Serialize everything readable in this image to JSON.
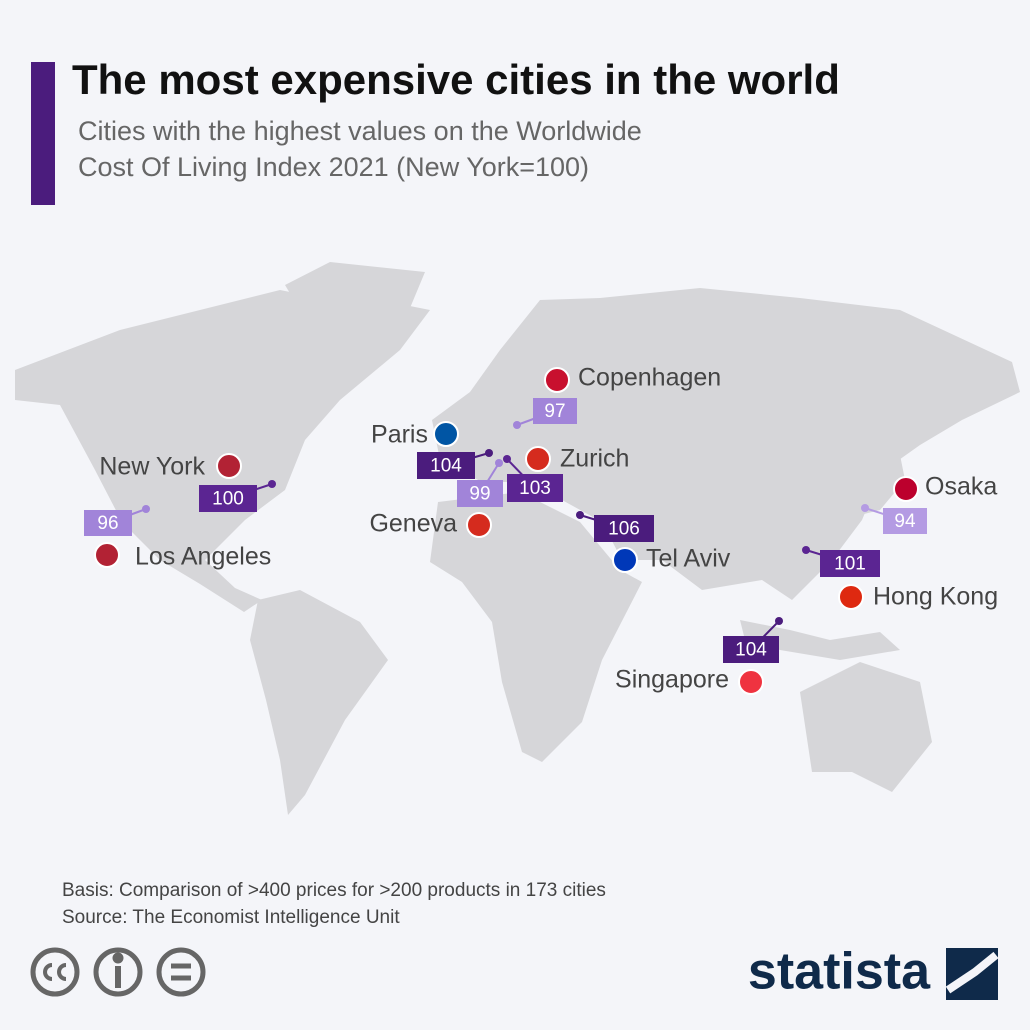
{
  "header": {
    "title": "The most expensive cities in the world",
    "subtitle": [
      "Cities with the highest values on the Worldwide",
      "Cost Of Living Index 2021 (New York=100)"
    ]
  },
  "cities": [
    {
      "name": "New York",
      "value": 100,
      "color": "#5b2592"
    },
    {
      "name": "Los Angeles",
      "value": 96,
      "color": "#a184d9"
    },
    {
      "name": "Paris",
      "value": 104,
      "color": "#4b1c7d"
    },
    {
      "name": "Zurich",
      "value": 103,
      "color": "#5b2592"
    },
    {
      "name": "Geneva",
      "value": 99,
      "color": "#a184d9"
    },
    {
      "name": "Copenhagen",
      "value": 97,
      "color": "#a184d9"
    },
    {
      "name": "Tel Aviv",
      "value": 106,
      "color": "#4b1c7d"
    },
    {
      "name": "Osaka",
      "value": 94,
      "color": "#b49be3"
    },
    {
      "name": "Hong Kong",
      "value": 101,
      "color": "#5b2592"
    },
    {
      "name": "Singapore",
      "value": 104,
      "color": "#4b1c7d"
    }
  ],
  "footer": {
    "basis": "Basis: Comparison of >400 prices for >200 products in 173 cities",
    "source": "Source: The Economist Intelligence Unit",
    "brand": "statista"
  }
}
